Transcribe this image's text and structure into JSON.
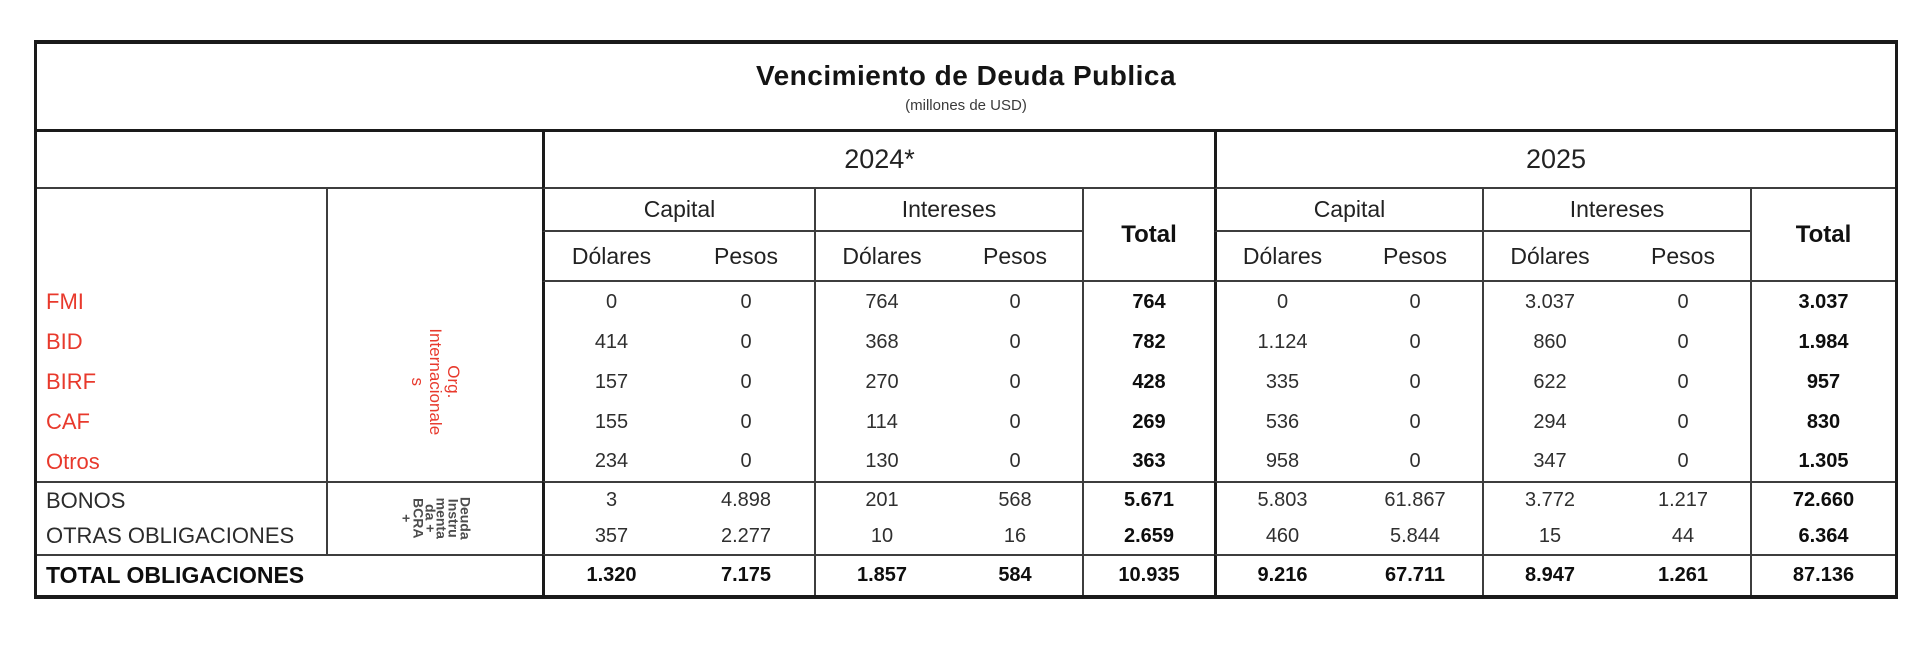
{
  "colors": {
    "accent_red": "#e8392c"
  },
  "chart_data": {
    "type": "table",
    "title": "Vencimiento de Deuda Publica",
    "subtitle": "(millones de USD)",
    "years": [
      "2024*",
      "2025"
    ],
    "sub_headers": {
      "capital": "Capital",
      "intereses": "Intereses",
      "total": "Total",
      "dolares": "Dólares",
      "pesos": "Pesos"
    },
    "row_groups": [
      {
        "label": "Org. Internacionales",
        "label_lines": "Org.\nInternacionale\ns",
        "color": "#e8392c",
        "rows": [
          "FMI",
          "BID",
          "BIRF",
          "CAF",
          "Otros"
        ]
      },
      {
        "label": "Deuda Instrumentada + BCRA +",
        "label_lines": "Deuda\nInstru\nmenta\nda +\nBCRA\n+",
        "color": "#4d4d4d",
        "rows": [
          "BONOS",
          "OTRAS OBLIGACIONES"
        ]
      }
    ],
    "columns_per_year": [
      "Capital Dólares",
      "Capital Pesos",
      "Intereses Dólares",
      "Intereses Pesos",
      "Total"
    ],
    "rows": [
      {
        "label": "FMI",
        "v2024": [
          "0",
          "0",
          "764",
          "0",
          "764"
        ],
        "v2025": [
          "0",
          "0",
          "3.037",
          "0",
          "3.037"
        ]
      },
      {
        "label": "BID",
        "v2024": [
          "414",
          "0",
          "368",
          "0",
          "782"
        ],
        "v2025": [
          "1.124",
          "0",
          "860",
          "0",
          "1.984"
        ]
      },
      {
        "label": "BIRF",
        "v2024": [
          "157",
          "0",
          "270",
          "0",
          "428"
        ],
        "v2025": [
          "335",
          "0",
          "622",
          "0",
          "957"
        ]
      },
      {
        "label": "CAF",
        "v2024": [
          "155",
          "0",
          "114",
          "0",
          "269"
        ],
        "v2025": [
          "536",
          "0",
          "294",
          "0",
          "830"
        ]
      },
      {
        "label": "Otros",
        "v2024": [
          "234",
          "0",
          "130",
          "0",
          "363"
        ],
        "v2025": [
          "958",
          "0",
          "347",
          "0",
          "1.305"
        ]
      },
      {
        "label": "BONOS",
        "v2024": [
          "3",
          "4.898",
          "201",
          "568",
          "5.671"
        ],
        "v2025": [
          "5.803",
          "61.867",
          "3.772",
          "1.217",
          "72.660"
        ]
      },
      {
        "label": "OTRAS OBLIGACIONES",
        "v2024": [
          "357",
          "2.277",
          "10",
          "16",
          "2.659"
        ],
        "v2025": [
          "460",
          "5.844",
          "15",
          "44",
          "6.364"
        ]
      },
      {
        "label": "TOTAL OBLIGACIONES",
        "v2024": [
          "1.320",
          "7.175",
          "1.857",
          "584",
          "10.935"
        ],
        "v2025": [
          "9.216",
          "67.711",
          "8.947",
          "1.261",
          "87.136"
        ],
        "is_total": true
      }
    ]
  }
}
